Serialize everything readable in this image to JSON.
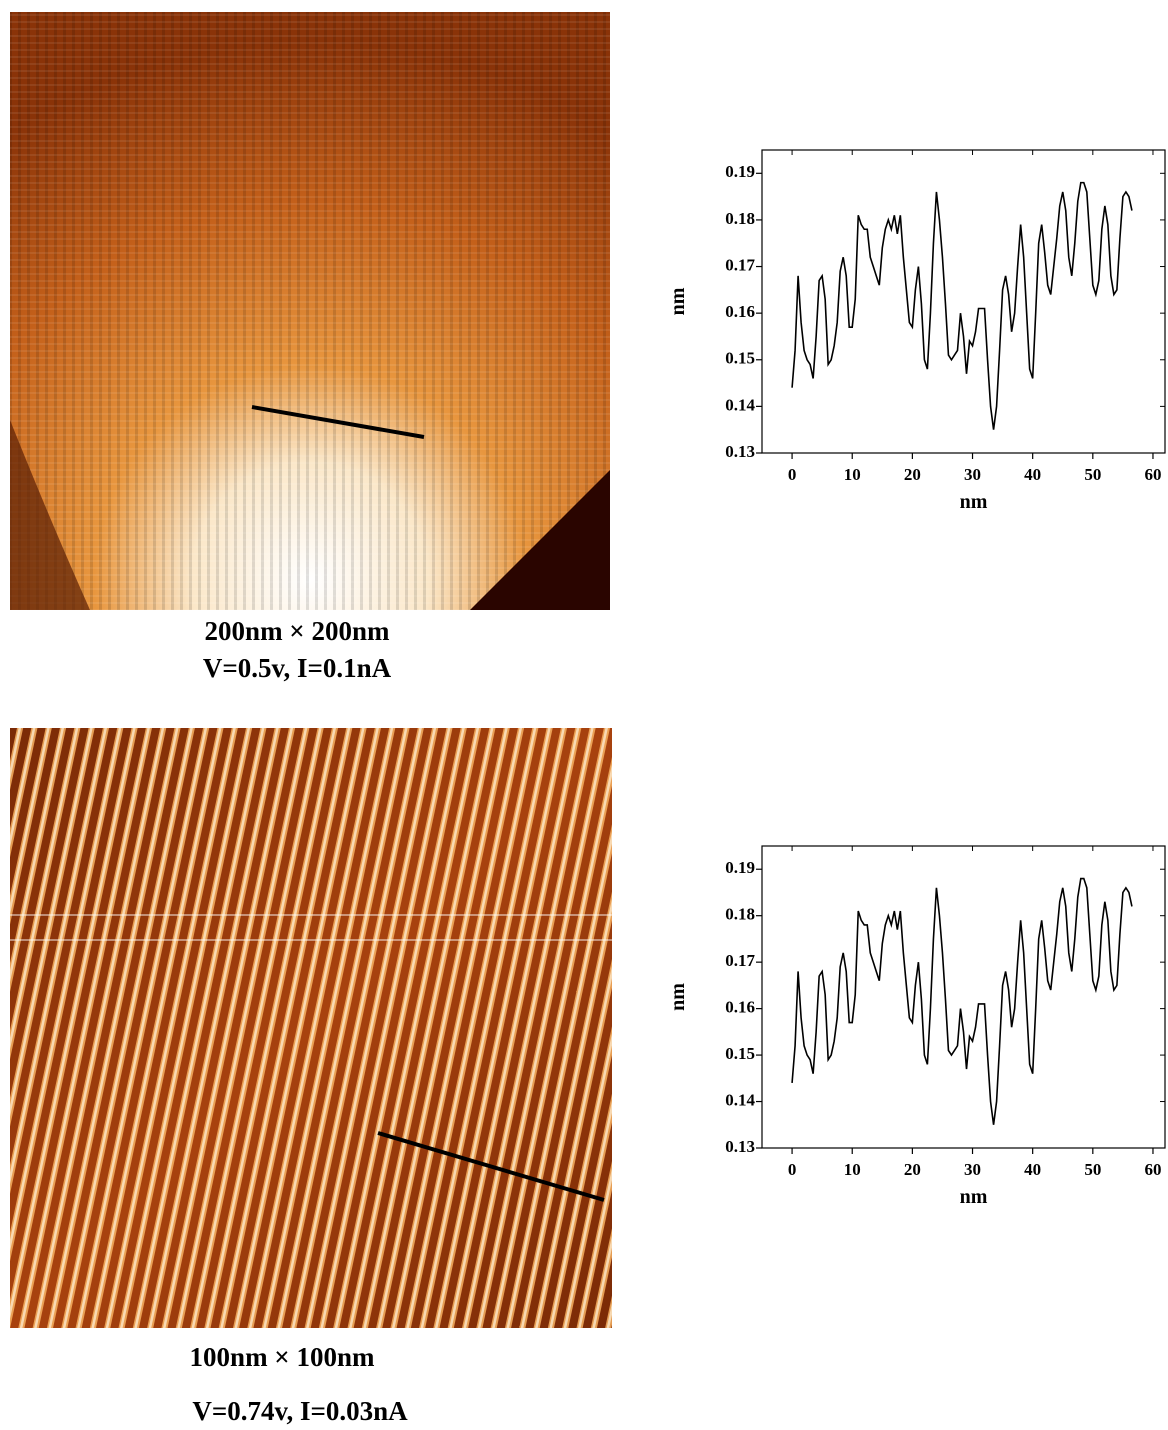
{
  "images": [
    {
      "caption_lines": [
        "200nm × 200nm",
        "V=0.5v, I=0.1nA"
      ]
    },
    {
      "caption_lines": [
        "100nm × 100nm",
        "V=0.74v, I=0.03nA"
      ]
    }
  ],
  "chart_data": [
    {
      "type": "line",
      "x_label": "nm",
      "y_label": "nm",
      "color": "#000000",
      "xlim": [
        -5,
        62
      ],
      "ylim": [
        0.13,
        0.195
      ],
      "xticks": [
        0,
        10,
        20,
        30,
        40,
        50,
        60
      ],
      "yticks": [
        0.13,
        0.14,
        0.15,
        0.16,
        0.17,
        0.18,
        0.19
      ],
      "x": [
        0,
        0.5,
        1,
        1.5,
        2,
        2.5,
        3,
        3.5,
        4,
        4.5,
        5,
        5.5,
        6,
        6.5,
        7,
        7.5,
        8,
        8.5,
        9,
        9.5,
        10,
        10.5,
        11,
        11.5,
        12,
        12.5,
        13,
        13.5,
        14,
        14.5,
        15,
        15.5,
        16,
        16.5,
        17,
        17.5,
        18,
        18.5,
        19,
        19.5,
        20,
        20.5,
        21,
        21.5,
        22,
        22.5,
        23,
        23.5,
        24,
        24.5,
        25,
        25.5,
        26,
        26.5,
        27,
        27.5,
        28,
        28.5,
        29,
        29.5,
        30,
        30.5,
        31,
        31.5,
        32,
        32.5,
        33,
        33.5,
        34,
        34.5,
        35,
        35.5,
        36,
        36.5,
        37,
        37.5,
        38,
        38.5,
        39,
        39.5,
        40,
        40.5,
        41,
        41.5,
        42,
        42.5,
        43,
        43.5,
        44,
        44.5,
        45,
        45.5,
        46,
        46.5,
        47,
        47.5,
        48,
        48.5,
        49,
        49.5,
        50,
        50.5,
        51,
        51.5,
        52,
        52.5,
        53,
        53.5,
        54,
        54.5,
        55,
        55.5,
        56,
        56.5
      ],
      "values": [
        0.144,
        0.152,
        0.168,
        0.158,
        0.152,
        0.15,
        0.149,
        0.146,
        0.155,
        0.167,
        0.168,
        0.163,
        0.149,
        0.15,
        0.153,
        0.158,
        0.169,
        0.172,
        0.168,
        0.157,
        0.157,
        0.163,
        0.181,
        0.179,
        0.178,
        0.178,
        0.172,
        0.17,
        0.168,
        0.166,
        0.174,
        0.178,
        0.18,
        0.178,
        0.181,
        0.177,
        0.181,
        0.172,
        0.165,
        0.158,
        0.157,
        0.165,
        0.17,
        0.162,
        0.15,
        0.148,
        0.16,
        0.175,
        0.186,
        0.18,
        0.172,
        0.162,
        0.151,
        0.15,
        0.151,
        0.152,
        0.16,
        0.155,
        0.147,
        0.154,
        0.153,
        0.156,
        0.161,
        0.161,
        0.161,
        0.15,
        0.14,
        0.135,
        0.14,
        0.152,
        0.165,
        0.168,
        0.164,
        0.156,
        0.16,
        0.17,
        0.179,
        0.172,
        0.16,
        0.148,
        0.146,
        0.16,
        0.175,
        0.179,
        0.173,
        0.166,
        0.164,
        0.17,
        0.176,
        0.183,
        0.186,
        0.182,
        0.172,
        0.168,
        0.175,
        0.184,
        0.188,
        0.188,
        0.186,
        0.176,
        0.166,
        0.164,
        0.167,
        0.178,
        0.183,
        0.179,
        0.168,
        0.164,
        0.165,
        0.176,
        0.185,
        0.186,
        0.185,
        0.182
      ]
    },
    {
      "type": "line",
      "x_label": "nm",
      "y_label": "nm",
      "color": "#000000",
      "xlim": [
        -5,
        62
      ],
      "ylim": [
        0.13,
        0.195
      ],
      "xticks": [
        0,
        10,
        20,
        30,
        40,
        50,
        60
      ],
      "yticks": [
        0.13,
        0.14,
        0.15,
        0.16,
        0.17,
        0.18,
        0.19
      ],
      "x": [
        0,
        0.5,
        1,
        1.5,
        2,
        2.5,
        3,
        3.5,
        4,
        4.5,
        5,
        5.5,
        6,
        6.5,
        7,
        7.5,
        8,
        8.5,
        9,
        9.5,
        10,
        10.5,
        11,
        11.5,
        12,
        12.5,
        13,
        13.5,
        14,
        14.5,
        15,
        15.5,
        16,
        16.5,
        17,
        17.5,
        18,
        18.5,
        19,
        19.5,
        20,
        20.5,
        21,
        21.5,
        22,
        22.5,
        23,
        23.5,
        24,
        24.5,
        25,
        25.5,
        26,
        26.5,
        27,
        27.5,
        28,
        28.5,
        29,
        29.5,
        30,
        30.5,
        31,
        31.5,
        32,
        32.5,
        33,
        33.5,
        34,
        34.5,
        35,
        35.5,
        36,
        36.5,
        37,
        37.5,
        38,
        38.5,
        39,
        39.5,
        40,
        40.5,
        41,
        41.5,
        42,
        42.5,
        43,
        43.5,
        44,
        44.5,
        45,
        45.5,
        46,
        46.5,
        47,
        47.5,
        48,
        48.5,
        49,
        49.5,
        50,
        50.5,
        51,
        51.5,
        52,
        52.5,
        53,
        53.5,
        54,
        54.5,
        55,
        55.5,
        56,
        56.5
      ],
      "values": [
        0.144,
        0.152,
        0.168,
        0.158,
        0.152,
        0.15,
        0.149,
        0.146,
        0.155,
        0.167,
        0.168,
        0.163,
        0.149,
        0.15,
        0.153,
        0.158,
        0.169,
        0.172,
        0.168,
        0.157,
        0.157,
        0.163,
        0.181,
        0.179,
        0.178,
        0.178,
        0.172,
        0.17,
        0.168,
        0.166,
        0.174,
        0.178,
        0.18,
        0.178,
        0.181,
        0.177,
        0.181,
        0.172,
        0.165,
        0.158,
        0.157,
        0.165,
        0.17,
        0.162,
        0.15,
        0.148,
        0.16,
        0.175,
        0.186,
        0.18,
        0.172,
        0.162,
        0.151,
        0.15,
        0.151,
        0.152,
        0.16,
        0.155,
        0.147,
        0.154,
        0.153,
        0.156,
        0.161,
        0.161,
        0.161,
        0.15,
        0.14,
        0.135,
        0.14,
        0.152,
        0.165,
        0.168,
        0.164,
        0.156,
        0.16,
        0.17,
        0.179,
        0.172,
        0.16,
        0.148,
        0.146,
        0.16,
        0.175,
        0.179,
        0.173,
        0.166,
        0.164,
        0.17,
        0.176,
        0.183,
        0.186,
        0.182,
        0.172,
        0.168,
        0.175,
        0.184,
        0.188,
        0.188,
        0.186,
        0.176,
        0.166,
        0.164,
        0.167,
        0.178,
        0.183,
        0.179,
        0.168,
        0.164,
        0.165,
        0.176,
        0.185,
        0.186,
        0.185,
        0.182
      ]
    }
  ]
}
